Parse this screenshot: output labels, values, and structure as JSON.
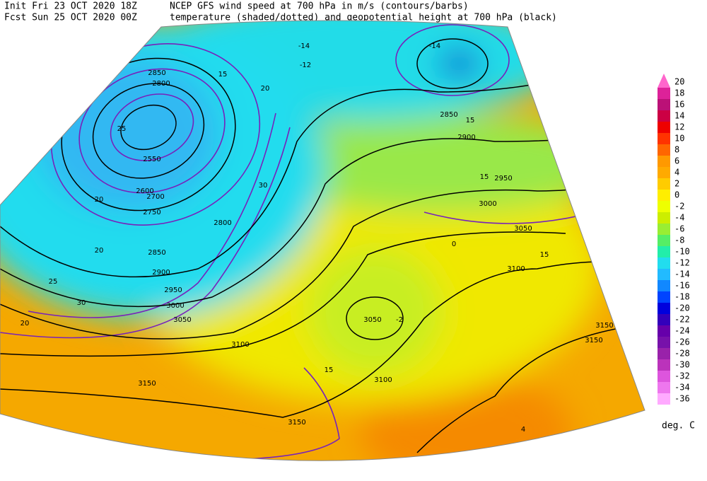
{
  "header": {
    "init": "Init  Fri 23 OCT 2020 18Z",
    "fcst": "Fcst Sun 25 OCT 2020 00Z",
    "title_line1": "NCEP GFS wind speed at 700 hPa in m/s (contours/barbs)",
    "title_line2": "temperature (shaded/dotted) and geopotential height at 700 hPa (black)"
  },
  "colorbar": {
    "labels": [
      20,
      18,
      16,
      14,
      12,
      10,
      8,
      6,
      4,
      2,
      0,
      -2,
      -4,
      -6,
      -8,
      -10,
      -12,
      -14,
      -16,
      -18,
      -20,
      -22,
      -24,
      -26,
      -28,
      -30,
      -32,
      -34,
      -36
    ],
    "colors": [
      "#ff66cc",
      "#dd2299",
      "#bb1177",
      "#cc0044",
      "#ee0000",
      "#ff3300",
      "#ff6600",
      "#ff9900",
      "#ffaa00",
      "#ffcc00",
      "#ffee00",
      "#eeff00",
      "#ccee00",
      "#99ee33",
      "#55ee66",
      "#22eeaa",
      "#22ddee",
      "#22bbff",
      "#1188ff",
      "#0044ff",
      "#0000dd",
      "#3300bb",
      "#6600aa",
      "#7711aa",
      "#9922aa",
      "#bb33bb",
      "#dd55dd",
      "#ee77ee",
      "#ffaaff"
    ],
    "unit": "deg. C"
  },
  "map_labels": [
    "2850",
    "2800",
    "2550",
    "2600",
    "2700",
    "2750",
    "2800",
    "2850",
    "2900",
    "2950",
    "3000",
    "3050",
    "3100",
    "3150",
    "3150",
    "3050",
    "3100",
    "3150",
    "3150",
    "3050",
    "3100",
    "3000",
    "2950",
    "2900",
    "2850",
    "25",
    "20",
    "15",
    "30",
    "20",
    "20",
    "25",
    "30",
    "20",
    "15",
    "15",
    "15",
    "15",
    "15",
    "20",
    "-14",
    "-12",
    "-14",
    "0",
    "4",
    "-2"
  ]
}
